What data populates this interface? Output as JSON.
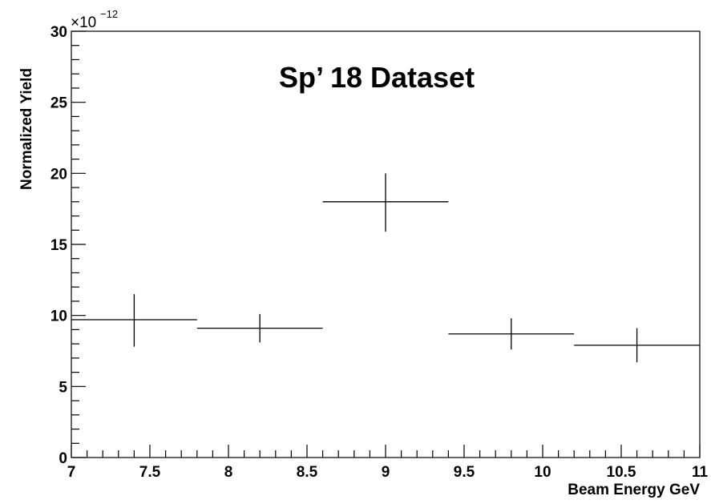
{
  "chart_data": {
    "type": "scatter",
    "title": "Sp’ 18 Dataset",
    "xlabel": "Beam Energy GeV",
    "ylabel": "Normalized Yield",
    "y_multiplier": "×10",
    "y_exponent": "−12",
    "xlim": [
      7,
      11
    ],
    "ylim": [
      0,
      30
    ],
    "x_ticks": [
      7,
      7.5,
      8,
      8.5,
      9,
      9.5,
      10,
      10.5,
      11
    ],
    "x_tick_labels": [
      "7",
      "7.5",
      "8",
      "8.5",
      "9",
      "9.5",
      "10",
      "10.5",
      "11"
    ],
    "y_ticks": [
      0,
      5,
      10,
      15,
      20,
      25,
      30
    ],
    "y_tick_labels": [
      "0",
      "5",
      "10",
      "15",
      "20",
      "25",
      "30"
    ],
    "grid": false,
    "points": [
      {
        "x": 7.4,
        "xlo": 7.0,
        "xhi": 7.8,
        "y": 9.7,
        "ylo": 7.8,
        "yhi": 11.5
      },
      {
        "x": 8.2,
        "xlo": 7.8,
        "xhi": 8.6,
        "y": 9.1,
        "ylo": 8.1,
        "yhi": 10.1
      },
      {
        "x": 9.0,
        "xlo": 8.6,
        "xhi": 9.4,
        "y": 18.0,
        "ylo": 15.9,
        "yhi": 20.0
      },
      {
        "x": 9.8,
        "xlo": 9.4,
        "xhi": 10.2,
        "y": 8.7,
        "ylo": 7.6,
        "yhi": 9.8
      },
      {
        "x": 10.6,
        "xlo": 10.2,
        "xhi": 11.0,
        "y": 7.9,
        "ylo": 6.7,
        "yhi": 9.1
      }
    ]
  }
}
